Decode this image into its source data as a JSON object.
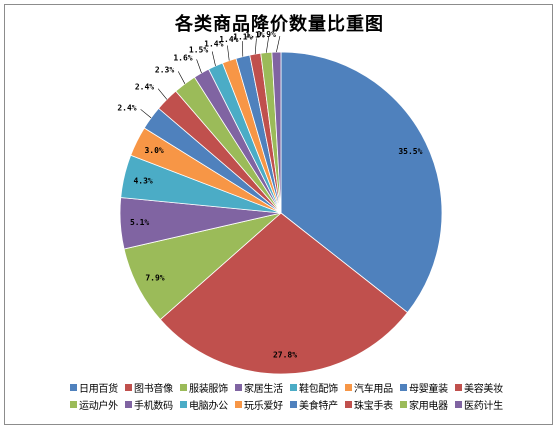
{
  "chart_data": {
    "type": "pie",
    "title": "各类商品降价数量比重图",
    "legend_placement": "bottom",
    "slices": [
      {
        "name": "日用百货",
        "value": 35.5,
        "label": "35.5%",
        "color": "#4F81BD"
      },
      {
        "name": "图书音像",
        "value": 27.8,
        "label": "27.8%",
        "color": "#C0504D"
      },
      {
        "name": "服装服饰",
        "value": 7.9,
        "label": "7.9%",
        "color": "#9BBB59"
      },
      {
        "name": "家居生活",
        "value": 5.1,
        "label": "5.1%",
        "color": "#8064A2"
      },
      {
        "name": "鞋包配饰",
        "value": 4.3,
        "label": "4.3%",
        "color": "#4BACC6"
      },
      {
        "name": "汽车用品",
        "value": 3.0,
        "label": "3.0%",
        "color": "#F79646"
      },
      {
        "name": "母婴童装",
        "value": 2.4,
        "label": "2.4%",
        "color": "#4F81BD"
      },
      {
        "name": "美容美妆",
        "value": 2.4,
        "label": "2.4%",
        "color": "#C0504D"
      },
      {
        "name": "运动户外",
        "value": 2.3,
        "label": "2.3%",
        "color": "#9BBB59"
      },
      {
        "name": "手机数码",
        "value": 1.6,
        "label": "1.6%",
        "color": "#8064A2"
      },
      {
        "name": "电脑办公",
        "value": 1.5,
        "label": "1.5%",
        "color": "#4BACC6"
      },
      {
        "name": "玩乐爱好",
        "value": 1.4,
        "label": "1.4%",
        "color": "#F79646"
      },
      {
        "name": "美食特产",
        "value": 1.4,
        "label": "1.4%",
        "color": "#4F81BD"
      },
      {
        "name": "珠宝手表",
        "value": 1.1,
        "label": "1.1%",
        "color": "#C0504D"
      },
      {
        "name": "家用电器",
        "value": 1.1,
        "label": "1.1%",
        "color": "#9BBB59"
      },
      {
        "name": "医药计生",
        "value": 0.9,
        "label": "0.9%",
        "color": "#8064A2"
      }
    ]
  }
}
